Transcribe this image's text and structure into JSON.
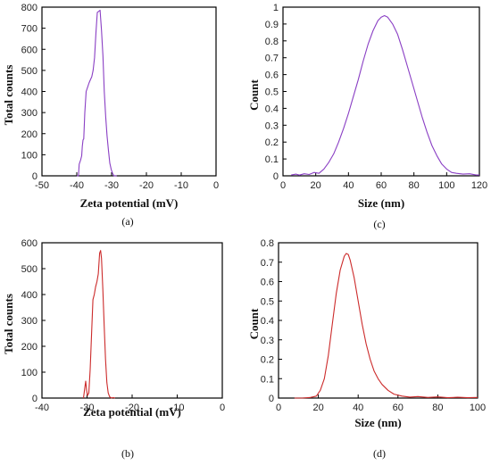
{
  "chart_data": [
    {
      "id": "a",
      "type": "line",
      "caption": "(a)",
      "xlabel": "Zeta potential (mV)",
      "ylabel": "Total counts",
      "xlim": [
        -50,
        0
      ],
      "ylim": [
        0,
        800
      ],
      "xticks": [
        -50,
        -40,
        -30,
        -20,
        -10,
        0
      ],
      "yticks": [
        0,
        100,
        200,
        300,
        400,
        500,
        600,
        700,
        800
      ],
      "color": "#8a3fc4",
      "series": [
        {
          "x": [
            -40,
            -39.5,
            -39.3,
            -39.2,
            -38.9,
            -38.6,
            -38.4,
            -38.2,
            -38.0,
            -37.7,
            -37.3,
            -36.9,
            -36.5,
            -36.1,
            -35.7,
            -35.3,
            -34.9,
            -34.5,
            -34.1,
            -33.7,
            -33.3,
            -32.9,
            -32.5,
            -32.1,
            -31.7,
            -31.3,
            -30.9,
            -30.5,
            -30.1,
            -29.7,
            -29.3,
            -28.9,
            -28.5
          ],
          "y": [
            0,
            0,
            55,
            60,
            75,
            95,
            140,
            170,
            175,
            300,
            400,
            420,
            440,
            455,
            470,
            500,
            560,
            680,
            775,
            780,
            785,
            690,
            570,
            400,
            280,
            190,
            120,
            60,
            30,
            10,
            0,
            0,
            0
          ]
        }
      ]
    },
    {
      "id": "c",
      "type": "line",
      "caption": "(c)",
      "xlabel": "Size (nm)",
      "ylabel": "Count",
      "xlim": [
        0,
        120
      ],
      "ylim": [
        0,
        1
      ],
      "xticks": [
        0,
        20,
        40,
        60,
        80,
        100,
        120
      ],
      "yticks": [
        0,
        0.1,
        0.2,
        0.3,
        0.4,
        0.5,
        0.6,
        0.7,
        0.8,
        0.9,
        1
      ],
      "color": "#8a3fc4",
      "series": [
        {
          "x": [
            5,
            8,
            10,
            13,
            16,
            19,
            22,
            25,
            28,
            31,
            34,
            37,
            40,
            43,
            46,
            49,
            52,
            55,
            58,
            60,
            62,
            64,
            67,
            70,
            73,
            76,
            79,
            82,
            85,
            88,
            91,
            94,
            97,
            100,
            103,
            106,
            110,
            114,
            118,
            120
          ],
          "y": [
            0.005,
            0.01,
            0.004,
            0.012,
            0.008,
            0.02,
            0.015,
            0.04,
            0.08,
            0.13,
            0.2,
            0.28,
            0.37,
            0.47,
            0.57,
            0.68,
            0.78,
            0.86,
            0.92,
            0.94,
            0.95,
            0.94,
            0.9,
            0.84,
            0.75,
            0.65,
            0.55,
            0.45,
            0.35,
            0.26,
            0.18,
            0.12,
            0.07,
            0.04,
            0.02,
            0.015,
            0.01,
            0.012,
            0.005,
            0.005
          ]
        }
      ]
    },
    {
      "id": "b",
      "type": "line",
      "caption": "(b)",
      "xlabel": "Zeta potential (mV)",
      "ylabel": "Total counts",
      "xlim": [
        -40,
        0
      ],
      "ylim": [
        0,
        600
      ],
      "xticks": [
        -40,
        -30,
        -20,
        -10,
        0
      ],
      "yticks": [
        0,
        100,
        200,
        300,
        400,
        500,
        600
      ],
      "color": "#cc2b2b",
      "series": [
        {
          "x": [
            -30.8,
            -30.5,
            -30.3,
            -30.1,
            -29.9,
            -29.6,
            -29.3,
            -29.0,
            -28.7,
            -28.4,
            -28.1,
            -27.8,
            -27.5,
            -27.2,
            -27.0,
            -26.8,
            -26.5,
            -26.2,
            -25.9,
            -25.6,
            -25.3,
            -25.0,
            -24.6,
            -24.2,
            -23.8
          ],
          "y": [
            0,
            40,
            65,
            30,
            10,
            20,
            110,
            250,
            380,
            400,
            430,
            450,
            480,
            560,
            570,
            540,
            420,
            280,
            150,
            60,
            20,
            5,
            0,
            2,
            0
          ]
        }
      ]
    },
    {
      "id": "d",
      "type": "line",
      "caption": "(d)",
      "xlabel": "Size (nm)",
      "ylabel": "Count",
      "xlim": [
        0,
        100
      ],
      "ylim": [
        0,
        0.8
      ],
      "xticks": [
        0,
        20,
        40,
        60,
        80,
        100
      ],
      "yticks": [
        0,
        0.1,
        0.2,
        0.3,
        0.4,
        0.5,
        0.6,
        0.7,
        0.8
      ],
      "color": "#cc2b2b",
      "series": [
        {
          "x": [
            8,
            12,
            16,
            19,
            21,
            23,
            25,
            27,
            29,
            31,
            33,
            34,
            35,
            36,
            38,
            40,
            42,
            44,
            46,
            48,
            50,
            52,
            55,
            58,
            62,
            66,
            70,
            75,
            80,
            85,
            90,
            95,
            100
          ],
          "y": [
            0,
            0,
            0.003,
            0.01,
            0.04,
            0.1,
            0.22,
            0.38,
            0.54,
            0.66,
            0.73,
            0.745,
            0.74,
            0.71,
            0.62,
            0.5,
            0.38,
            0.28,
            0.2,
            0.14,
            0.1,
            0.07,
            0.04,
            0.02,
            0.01,
            0.005,
            0.008,
            0.003,
            0.006,
            0.002,
            0.004,
            0.002,
            0.003
          ]
        }
      ]
    }
  ]
}
